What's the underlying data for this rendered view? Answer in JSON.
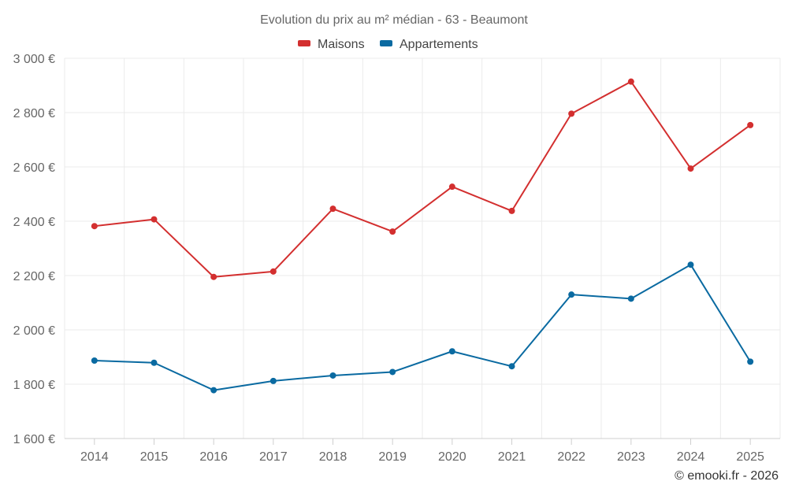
{
  "chart_data": {
    "type": "line",
    "title": "Evolution du prix au m² médian - 63 - Beaumont",
    "categories": [
      "2014",
      "2015",
      "2016",
      "2017",
      "2018",
      "2019",
      "2020",
      "2021",
      "2022",
      "2023",
      "2024",
      "2025"
    ],
    "y_ticks": [
      1600,
      1800,
      2000,
      2200,
      2400,
      2600,
      2800,
      3000
    ],
    "y_tick_labels": [
      "1 600 €",
      "1 800 €",
      "2 000 €",
      "2 200 €",
      "2 400 €",
      "2 600 €",
      "2 800 €",
      "3 000 €"
    ],
    "ylim": [
      1600,
      3000
    ],
    "grid": true,
    "legend_position": "top-center",
    "series": [
      {
        "name": "Maisons",
        "color": "#d32f2f",
        "values": [
          2382,
          2407,
          2195,
          2215,
          2446,
          2362,
          2527,
          2438,
          2796,
          2914,
          2594,
          2754
        ]
      },
      {
        "name": "Appartements",
        "color": "#0a6aa1",
        "values": [
          1887,
          1879,
          1778,
          1812,
          1832,
          1845,
          1921,
          1866,
          2130,
          2115,
          2240,
          1883
        ]
      }
    ]
  },
  "credit": "© emooki.fr - 2026"
}
